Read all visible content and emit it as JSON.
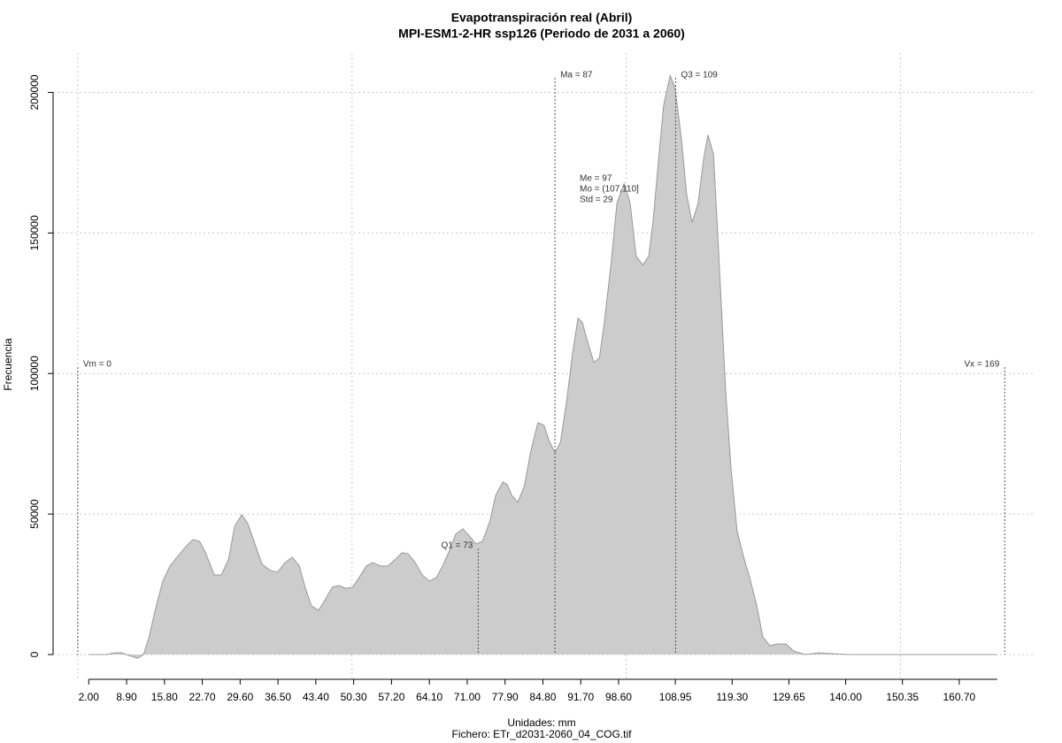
{
  "chart_data": {
    "type": "area",
    "title": "Evapotranspiración real (Abril)",
    "subtitle": "MPI-ESM1-2-HR ssp126 (Periodo de 2031 a 2060)",
    "x_label": "Unidades: mm",
    "caption": "Fichero: ETr_d2031-2060_04_COG.tif",
    "y_label": "Frecuencia",
    "color": "#cccccc",
    "line_color": "#999999",
    "x": [
      2.0,
      5.2,
      6.8,
      8.0,
      9.3,
      10.9,
      12.0,
      13.0,
      14.1,
      15.5,
      16.8,
      18.1,
      19.7,
      21.0,
      22.2,
      23.3,
      24.9,
      26.2,
      27.5,
      28.6,
      29.9,
      31.0,
      32.3,
      33.6,
      35.1,
      36.4,
      37.8,
      39.1,
      40.4,
      41.5,
      42.6,
      43.9,
      45.1,
      46.4,
      47.6,
      48.8,
      50.1,
      51.4,
      52.6,
      53.8,
      55.2,
      56.5,
      57.8,
      59.1,
      60.2,
      61.5,
      62.8,
      64.1,
      65.4,
      66.5,
      67.8,
      68.9,
      70.2,
      71.4,
      72.6,
      73.8,
      75.1,
      76.2,
      77.5,
      78.3,
      79.1,
      80.2,
      81.4,
      82.6,
      83.9,
      85.0,
      85.9,
      87.0,
      88.0,
      89.1,
      90.2,
      91.2,
      92.0,
      93.1,
      94.1,
      95.1,
      96.0,
      97.2,
      98.3,
      99.6,
      100.7,
      101.8,
      103.0,
      104.1,
      104.9,
      105.9,
      106.8,
      108.0,
      108.9,
      110.1,
      111.0,
      112.0,
      113.1,
      114.1,
      114.9,
      115.9,
      116.8,
      118.1,
      119.1,
      120.2,
      121.4,
      122.6,
      123.8,
      124.9,
      126.2,
      127.5,
      129.1,
      130.5,
      132.6,
      135.1,
      137.5,
      140.7,
      167.6
    ],
    "values": [
      0,
      0,
      630,
      630,
      -315,
      -1260,
      0,
      6300,
      15750,
      26145,
      31500,
      34650,
      38430,
      40950,
      40320,
      36225,
      28350,
      28350,
      34020,
      45675,
      49770,
      46620,
      39375,
      32130,
      29925,
      29295,
      32760,
      34650,
      31500,
      23625,
      17325,
      15750,
      19530,
      23940,
      24570,
      23625,
      23940,
      27720,
      31500,
      32760,
      31500,
      31500,
      33705,
      36225,
      35910,
      32760,
      28350,
      26145,
      27405,
      31500,
      37170,
      42840,
      44730,
      42210,
      39375,
      40320,
      47250,
      56700,
      61425,
      60480,
      56700,
      54180,
      59850,
      72450,
      82530,
      81585,
      76230,
      71820,
      75600,
      89775,
      107100,
      119700,
      118125,
      110250,
      103950,
      105525,
      118125,
      138600,
      160650,
      167580,
      160650,
      141750,
      138600,
      141750,
      154350,
      176400,
      195300,
      206010,
      201600,
      182700,
      163800,
      153720,
      160650,
      176400,
      184905,
      177975,
      144900,
      94500,
      66150,
      44100,
      34650,
      26775,
      17325,
      6300,
      3150,
      3780,
      3780,
      1260,
      0,
      630,
      315,
      0,
      0
    ],
    "xlim": [
      -4.5,
      174.6
    ],
    "ylim": [
      -8800,
      214000
    ],
    "xticks": [
      {
        "value": 2.0,
        "label": "2.00"
      },
      {
        "value": 8.9,
        "label": "8.90"
      },
      {
        "value": 15.8,
        "label": "15.80"
      },
      {
        "value": 22.7,
        "label": "22.70"
      },
      {
        "value": 29.6,
        "label": "29.60"
      },
      {
        "value": 36.5,
        "label": "36.50"
      },
      {
        "value": 43.4,
        "label": "43.40"
      },
      {
        "value": 50.3,
        "label": "50.30"
      },
      {
        "value": 57.2,
        "label": "57.20"
      },
      {
        "value": 64.1,
        "label": "64.10"
      },
      {
        "value": 71.0,
        "label": "71.00"
      },
      {
        "value": 77.9,
        "label": "77.90"
      },
      {
        "value": 84.8,
        "label": "84.80"
      },
      {
        "value": 91.7,
        "label": "91.70"
      },
      {
        "value": 98.6,
        "label": "98.60"
      },
      {
        "value": 108.95,
        "label": "108.95"
      },
      {
        "value": 119.3,
        "label": "119.30"
      },
      {
        "value": 129.65,
        "label": "129.65"
      },
      {
        "value": 140.0,
        "label": "140.00"
      },
      {
        "value": 150.35,
        "label": "150.35"
      },
      {
        "value": 160.7,
        "label": "160.70"
      }
    ],
    "yticks": [
      0,
      50000,
      100000,
      150000,
      200000
    ],
    "xgrid": [
      0,
      50,
      100,
      150
    ],
    "grid": true,
    "markers": [
      {
        "label": "Vm = 0",
        "x": 0
      },
      {
        "label": "Q1 = 73",
        "x": 73
      },
      {
        "label": "Ma = 87",
        "x": 87
      },
      {
        "label": "Q3 = 109",
        "x": 109
      },
      {
        "label": "Vx = 169",
        "x": 169
      }
    ],
    "stats": [
      "Me = 97",
      "Mo = (107,110]",
      "Std = 29"
    ]
  }
}
